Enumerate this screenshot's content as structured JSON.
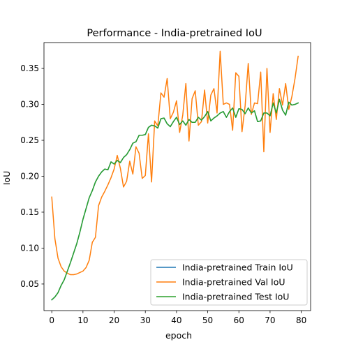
{
  "chart_data": {
    "type": "line",
    "title": "Performance - India-pretrained IoU",
    "xlabel": "epoch",
    "ylabel": "IoU",
    "xlim": [
      -2.5,
      83
    ],
    "ylim": [
      0.013,
      0.386
    ],
    "xticks": [
      0,
      10,
      20,
      30,
      40,
      50,
      60,
      70,
      80
    ],
    "yticks": [
      0.05,
      0.1,
      0.15,
      0.2,
      0.25,
      0.3,
      0.35
    ],
    "xtick_labels": [
      "0",
      "10",
      "20",
      "30",
      "40",
      "50",
      "60",
      "70",
      "80"
    ],
    "ytick_labels": [
      "0.05",
      "0.10",
      "0.15",
      "0.20",
      "0.25",
      "0.30",
      "0.35"
    ],
    "grid": false,
    "legend_position": "lower right",
    "x": [
      0,
      1,
      2,
      3,
      4,
      5,
      6,
      7,
      8,
      9,
      10,
      11,
      12,
      13,
      14,
      15,
      16,
      17,
      18,
      19,
      20,
      21,
      22,
      23,
      24,
      25,
      26,
      27,
      28,
      29,
      30,
      31,
      32,
      33,
      34,
      35,
      36,
      37,
      38,
      39,
      40,
      41,
      42,
      43,
      44,
      45,
      46,
      47,
      48,
      49,
      50,
      51,
      52,
      53,
      54,
      55,
      56,
      57,
      58,
      59,
      60,
      61,
      62,
      63,
      64,
      65,
      66,
      67,
      68,
      69,
      70,
      71,
      72,
      73,
      74,
      75,
      76,
      77,
      78,
      79
    ],
    "series": [
      {
        "name": "India-pretrained Train IoU",
        "color": "#1f77b4",
        "values": [
          0.028,
          0.032,
          0.038,
          0.048,
          0.056,
          0.068,
          0.08,
          0.093,
          0.106,
          0.122,
          0.14,
          0.155,
          0.17,
          0.18,
          0.192,
          0.2,
          0.206,
          0.21,
          0.209,
          0.22,
          0.217,
          0.222,
          0.219,
          0.226,
          0.23,
          0.237,
          0.246,
          0.248,
          0.257,
          0.257,
          0.258,
          0.268,
          0.271,
          0.27,
          0.267,
          0.28,
          0.281,
          0.273,
          0.269,
          0.276,
          0.282,
          0.272,
          0.277,
          0.271,
          0.279,
          0.275,
          0.275,
          0.282,
          0.278,
          0.283,
          0.29,
          0.277,
          0.281,
          0.284,
          0.288,
          0.29,
          0.282,
          0.29,
          0.295,
          0.282,
          0.294,
          0.293,
          0.287,
          0.295,
          0.288,
          0.291,
          0.276,
          0.277,
          0.288,
          0.288,
          0.284,
          0.302,
          0.288,
          0.307,
          0.292,
          0.285,
          0.303,
          0.299,
          0.3,
          0.302
        ]
      },
      {
        "name": "India-pretrained Val IoU",
        "color": "#ff7f0e",
        "values": [
          0.171,
          0.113,
          0.086,
          0.074,
          0.068,
          0.065,
          0.063,
          0.063,
          0.064,
          0.066,
          0.068,
          0.073,
          0.083,
          0.108,
          0.115,
          0.159,
          0.171,
          0.179,
          0.188,
          0.198,
          0.21,
          0.229,
          0.211,
          0.185,
          0.193,
          0.221,
          0.203,
          0.241,
          0.232,
          0.197,
          0.201,
          0.259,
          0.192,
          0.277,
          0.27,
          0.316,
          0.31,
          0.336,
          0.28,
          0.289,
          0.305,
          0.261,
          0.285,
          0.329,
          0.249,
          0.308,
          0.319,
          0.271,
          0.276,
          0.32,
          0.274,
          0.313,
          0.322,
          0.288,
          0.374,
          0.3,
          0.302,
          0.3,
          0.264,
          0.344,
          0.339,
          0.262,
          0.298,
          0.357,
          0.286,
          0.302,
          0.301,
          0.345,
          0.234,
          0.35,
          0.261,
          0.315,
          0.279,
          0.322,
          0.299,
          0.329,
          0.293,
          0.311,
          0.336,
          0.367
        ]
      },
      {
        "name": "India-pretrained Test IoU",
        "color": "#2ca02c",
        "values": [
          0.028,
          0.032,
          0.038,
          0.048,
          0.056,
          0.068,
          0.08,
          0.093,
          0.106,
          0.122,
          0.14,
          0.155,
          0.17,
          0.18,
          0.192,
          0.2,
          0.206,
          0.21,
          0.209,
          0.22,
          0.217,
          0.222,
          0.219,
          0.226,
          0.23,
          0.237,
          0.246,
          0.248,
          0.257,
          0.257,
          0.258,
          0.268,
          0.271,
          0.27,
          0.267,
          0.28,
          0.281,
          0.273,
          0.269,
          0.276,
          0.282,
          0.272,
          0.277,
          0.271,
          0.279,
          0.275,
          0.275,
          0.282,
          0.278,
          0.283,
          0.29,
          0.277,
          0.281,
          0.284,
          0.288,
          0.29,
          0.282,
          0.29,
          0.295,
          0.282,
          0.294,
          0.293,
          0.287,
          0.295,
          0.288,
          0.291,
          0.276,
          0.277,
          0.288,
          0.288,
          0.284,
          0.302,
          0.288,
          0.307,
          0.292,
          0.285,
          0.303,
          0.299,
          0.3,
          0.302
        ]
      }
    ]
  }
}
